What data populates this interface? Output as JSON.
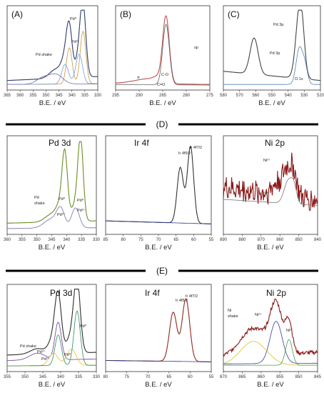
{
  "sections": {
    "D": "(D)",
    "E": "(E)"
  },
  "chart_data": [
    {
      "id": "A",
      "type": "line",
      "panel_label": "(A)",
      "title": "",
      "xlabel": "B.E. / eV",
      "xlim": [
        365,
        330
      ],
      "ylim": [
        0,
        1
      ],
      "xticks": [
        "365",
        "360",
        "355",
        "350",
        "345",
        "340",
        "335",
        "330"
      ],
      "annotations": [
        "Pd shake",
        "Pd⁰",
        "Pd²⁺"
      ],
      "series": [
        {
          "name": "",
          "color": "#2e3d6b",
          "peaks": [
            [
              341.0,
              0.7,
              1.1
            ],
            [
              335.7,
              1.0,
              1.1
            ],
            [
              337.2,
              0.3,
              1.4
            ],
            [
              342.6,
              0.25,
              1.4
            ],
            [
              346.0,
              0.14,
              2.5
            ]
          ],
          "baseline": [
            0.08,
            0.14
          ]
        },
        {
          "name": "",
          "color": "#c8963c",
          "peaks": [
            [
              335.7,
              0.8,
              1.1
            ],
            [
              341.0,
              0.55,
              1.1
            ]
          ],
          "baseline": [
            0.02,
            0.03
          ]
        },
        {
          "name": "",
          "color": "#6f9fd8",
          "peaks": [
            [
              337.2,
              0.45,
              1.3
            ],
            [
              342.6,
              0.3,
              1.3
            ]
          ],
          "baseline": [
            0.02,
            0.03
          ]
        },
        {
          "name": "",
          "color": "#7c6aa8",
          "peaks": [
            [
              346.0,
              0.14,
              2.5
            ],
            [
              351.0,
              0.1,
              2.5
            ]
          ],
          "baseline": [
            0.02,
            0.03
          ]
        }
      ]
    },
    {
      "id": "B",
      "type": "line",
      "panel_label": "(B)",
      "title": "",
      "xlabel": "B.E. / eV",
      "xlim": [
        295,
        275
      ],
      "ylim": [
        0,
        1
      ],
      "xticks": [
        "295",
        "290",
        "285",
        "280",
        "275"
      ],
      "annotations": [
        "sp",
        "C-O",
        "C=O",
        "π"
      ],
      "series": [
        {
          "name": "",
          "color": "#c0504d",
          "peaks": [
            [
              284.3,
              1.0,
              0.7
            ],
            [
              286.0,
              0.1,
              1.2
            ],
            [
              288.6,
              0.05,
              1.4
            ],
            [
              291.0,
              0.03,
              1.8
            ]
          ],
          "baseline": [
            0.04,
            0.02
          ]
        },
        {
          "name": "",
          "color": "#666666",
          "peaks": [
            [
              284.3,
              0.92,
              0.7
            ]
          ],
          "baseline": [
            0.02,
            0.01
          ]
        }
      ]
    },
    {
      "id": "C",
      "type": "line",
      "panel_label": "(C)",
      "title": "",
      "xlabel": "B.E. / eV",
      "xlim": [
        580,
        520
      ],
      "ylim": [
        0,
        1
      ],
      "xticks": [
        "580",
        "570",
        "560",
        "550",
        "540",
        "530",
        "520"
      ],
      "annotations": [
        "Pd 3p",
        "Pd 3p",
        "O 1s"
      ],
      "series": [
        {
          "name": "",
          "color": "#444444",
          "peaks": [
            [
              561.0,
              0.55,
              2.5
            ],
            [
              533.0,
              0.95,
              2.3
            ],
            [
              531.5,
              0.3,
              1.8
            ]
          ],
          "baseline": [
            0.22,
            0.08
          ]
        },
        {
          "name": "",
          "color": "#4f81bd",
          "peaks": [
            [
              533.0,
              0.55,
              2.0
            ],
            [
              529.5,
              0.25,
              1.6
            ]
          ],
          "baseline": [
            0.02,
            0.02
          ]
        }
      ]
    },
    {
      "id": "D-Pd",
      "type": "line",
      "panel_label": "",
      "title": "Pd 3d",
      "xlabel": "B.E. / eV",
      "xlim": [
        360,
        330
      ],
      "ylim": [
        0,
        1
      ],
      "xticks": [
        "360",
        "355",
        "350",
        "345",
        "340",
        "335",
        "330"
      ],
      "annotations": [
        "Pd",
        "shake",
        "Pd⁰",
        "Pd²⁺",
        "Pd⁰",
        "Pd²⁺"
      ],
      "series": [
        {
          "name": "",
          "color": "#6b8e23",
          "peaks": [
            [
              340.6,
              0.8,
              0.9
            ],
            [
              335.3,
              1.0,
              0.9
            ],
            [
              342.0,
              0.2,
              1.4
            ],
            [
              337.0,
              0.22,
              1.4
            ],
            [
              345.0,
              0.1,
              2.2
            ]
          ],
          "baseline": [
            0.09,
            0.12
          ]
        },
        {
          "name": "",
          "color": "#7c6aa8",
          "peaks": [
            [
              342.0,
              0.22,
              1.3
            ],
            [
              337.0,
              0.26,
              1.3
            ],
            [
              345.0,
              0.12,
              2.5
            ]
          ],
          "baseline": [
            0.02,
            0.03
          ]
        }
      ]
    },
    {
      "id": "D-Ir",
      "type": "line",
      "panel_label": "",
      "title": "Ir 4f",
      "xlabel": "B.E. / eV",
      "xlim": [
        85,
        55
      ],
      "ylim": [
        0,
        1
      ],
      "xticks": [
        "85",
        "80",
        "75",
        "70",
        "65",
        "60",
        "55"
      ],
      "annotations": [
        "Ir 4f5/2",
        "Ir 4f7/2"
      ],
      "series": [
        {
          "name": "",
          "color": "#333333",
          "peaks": [
            [
              63.8,
              0.72,
              0.9
            ],
            [
              60.9,
              1.0,
              0.9
            ]
          ],
          "baseline": [
            0.12,
            0.08
          ]
        },
        {
          "name": "",
          "color": "#2b3a8c",
          "peaks": [],
          "baseline": [
            0.12,
            0.08
          ]
        }
      ]
    },
    {
      "id": "D-Ni",
      "type": "line",
      "panel_label": "",
      "title": "Ni 2p",
      "xlabel": "B.E. / eV",
      "xlim": [
        890,
        840
      ],
      "ylim": [
        0,
        1
      ],
      "xticks": [
        "890",
        "880",
        "870",
        "860",
        "850",
        "840"
      ],
      "annotations": [
        "Ni²⁺",
        "Ni⁰"
      ],
      "series": [
        {
          "name": "",
          "color": "#8b1a1a",
          "peaks": [
            [
              855.5,
              0.35,
              2.5
            ],
            [
              861.0,
              0.15,
              3.0
            ],
            [
              852.5,
              0.2,
              1.5
            ]
          ],
          "baseline": [
            0.55,
            0.38
          ],
          "noise": 0.16
        },
        {
          "name": "",
          "color": "#777777",
          "peaks": [
            [
              855.5,
              0.3,
              2.2
            ],
            [
              852.5,
              0.18,
              1.4
            ]
          ],
          "baseline": [
            0.4,
            0.32
          ]
        }
      ]
    },
    {
      "id": "E-Pd",
      "type": "line",
      "panel_label": "",
      "title": "Pd 3d",
      "xlabel": "B.E. / eV",
      "xlim": [
        355,
        330
      ],
      "ylim": [
        0,
        1
      ],
      "xticks": [
        "355",
        "350",
        "345",
        "340",
        "335",
        "330"
      ],
      "annotations": [
        "Pd shake",
        "Pd⁰",
        "Pd²⁺",
        "Pd⁰",
        "Pd²⁺"
      ],
      "series": [
        {
          "name": "",
          "color": "#2e2e2e",
          "peaks": [
            [
              340.7,
              0.78,
              0.9
            ],
            [
              335.4,
              1.0,
              0.9
            ],
            [
              342.0,
              0.22,
              1.3
            ],
            [
              337.0,
              0.25,
              1.3
            ],
            [
              346.5,
              0.08,
              2.0
            ]
          ],
          "baseline": [
            0.18,
            0.22
          ]
        },
        {
          "name": "",
          "color": "#6a3d9a",
          "peaks": [
            [
              340.7,
              0.55,
              0.9
            ],
            [
              346.5,
              0.1,
              2.2
            ]
          ],
          "baseline": [
            0.1,
            0.12
          ]
        },
        {
          "name": "",
          "color": "#e6c229",
          "peaks": [
            [
              337.0,
              0.24,
              1.3
            ],
            [
              342.0,
              0.18,
              1.3
            ]
          ],
          "baseline": [
            0.02,
            0.03
          ]
        },
        {
          "name": "",
          "color": "#2e8b57",
          "peaks": [
            [
              335.4,
              0.8,
              0.9
            ],
            [
              340.7,
              0.45,
              0.9
            ]
          ],
          "baseline": [
            0.02,
            0.03
          ]
        }
      ]
    },
    {
      "id": "E-Ir",
      "type": "line",
      "panel_label": "",
      "title": "Ir 4f",
      "xlabel": "B.E. / eV",
      "xlim": [
        80,
        55
      ],
      "ylim": [
        0,
        1
      ],
      "xticks": [
        "80",
        "75",
        "70",
        "65",
        "60",
        "55"
      ],
      "annotations": [
        "Ir 4f5/2",
        "Ir 4f7/2"
      ],
      "series": [
        {
          "name": "",
          "color": "#8b2a1a",
          "peaks": [
            [
              64.0,
              0.72,
              0.9
            ],
            [
              61.0,
              0.92,
              0.9
            ]
          ],
          "baseline": [
            0.1,
            0.08
          ]
        },
        {
          "name": "",
          "color": "#2b3a8c",
          "peaks": [],
          "baseline": [
            0.1,
            0.08
          ]
        }
      ]
    },
    {
      "id": "E-Ni",
      "type": "line",
      "panel_label": "",
      "title": "Ni 2p",
      "xlabel": "B.E. / eV",
      "xlim": [
        870,
        845
      ],
      "ylim": [
        0,
        1
      ],
      "xticks": [
        "870",
        "865",
        "860",
        "855",
        "850",
        "845"
      ],
      "annotations": [
        "Ni",
        "shake",
        "Ni²⁺",
        "Ni⁰"
      ],
      "series": [
        {
          "name": "",
          "color": "#8b1a1a",
          "peaks": [
            [
              856.0,
              0.7,
              1.6
            ],
            [
              852.6,
              0.45,
              0.9
            ],
            [
              862.0,
              0.4,
              3.5
            ]
          ],
          "baseline": [
            0.15,
            0.22
          ],
          "noise": 0.03
        },
        {
          "name": "",
          "color": "#3a3a9c",
          "peaks": [
            [
              856.0,
              0.62,
              1.6
            ]
          ],
          "baseline": [
            0.05,
            0.06
          ]
        },
        {
          "name": "",
          "color": "#d6c22a",
          "peaks": [
            [
              862.0,
              0.35,
              3.5
            ]
          ],
          "baseline": [
            0.03,
            0.03
          ]
        },
        {
          "name": "",
          "color": "#4a9a4a",
          "peaks": [
            [
              852.6,
              0.38,
              0.9
            ]
          ],
          "baseline": [
            0.03,
            0.03
          ]
        }
      ]
    }
  ]
}
